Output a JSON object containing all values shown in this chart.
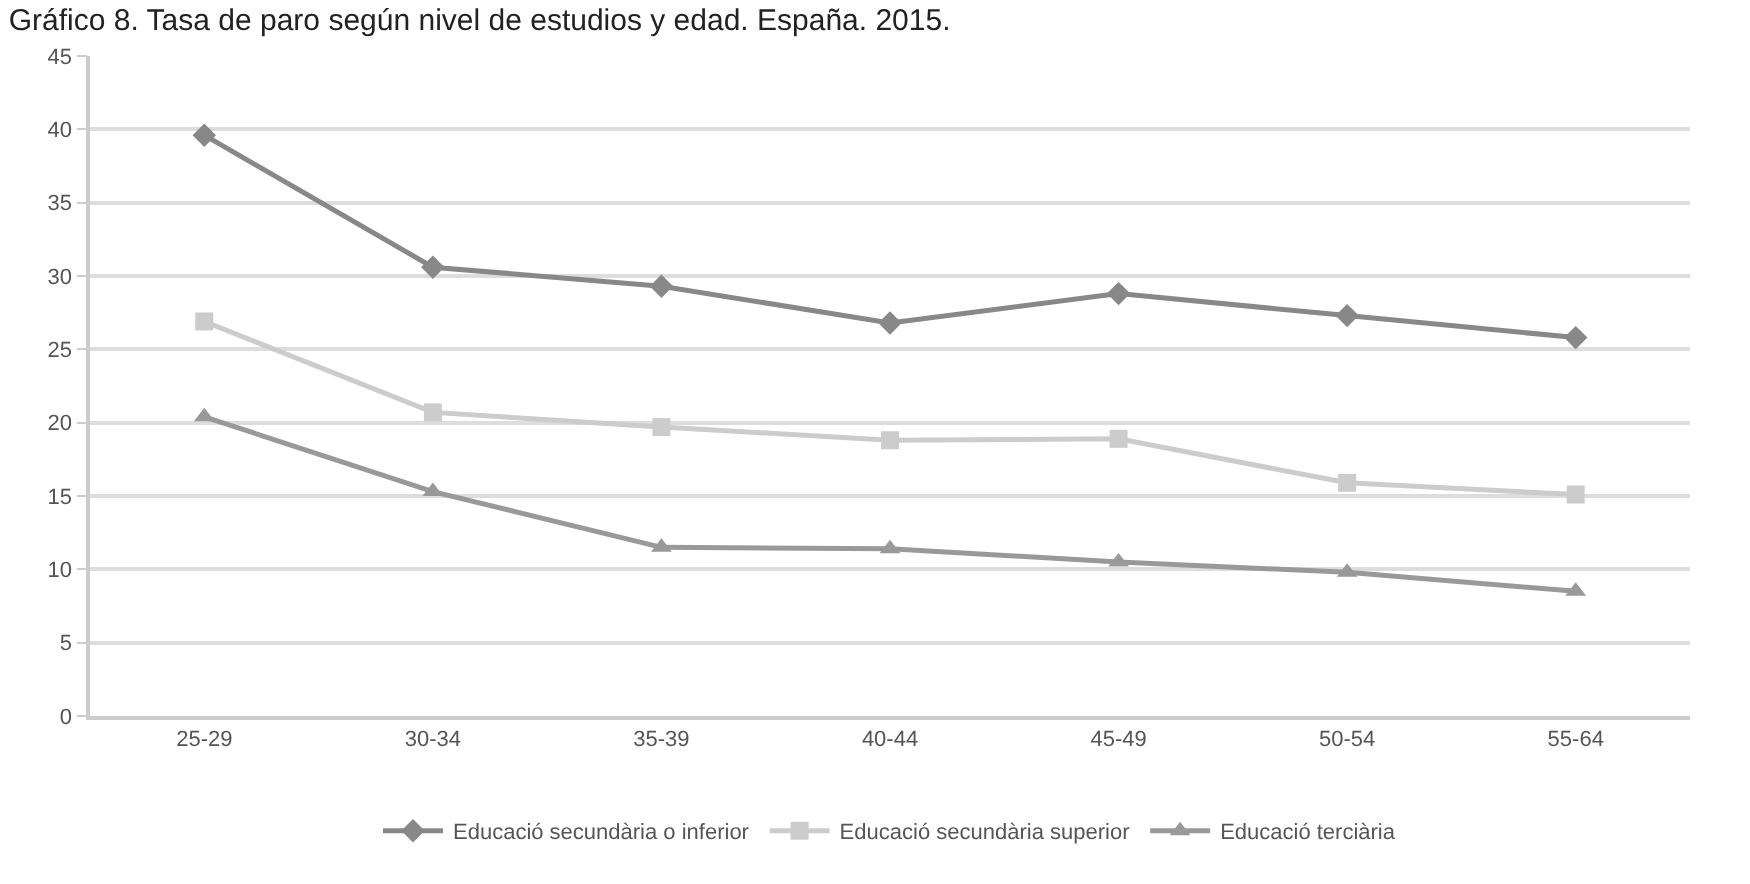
{
  "chart_data": {
    "type": "line",
    "title": "Gráfico 8. Tasa de paro según nivel de estudios y edad. España. 2015.",
    "categories": [
      "25-29",
      "30-34",
      "35-39",
      "40-44",
      "45-49",
      "50-54",
      "55-64"
    ],
    "series": [
      {
        "name": "Educació secundària o inferior",
        "color": "#888888",
        "marker": "diamond",
        "values": [
          39.6,
          30.6,
          29.3,
          26.8,
          28.8,
          27.3,
          25.8
        ]
      },
      {
        "name": "Educació secundària superior",
        "color": "#cccccc",
        "marker": "square",
        "values": [
          26.9,
          20.7,
          19.7,
          18.8,
          18.9,
          15.9,
          15.1
        ]
      },
      {
        "name": "Educació terciària",
        "color": "#999999",
        "marker": "triangle",
        "values": [
          20.4,
          15.3,
          11.5,
          11.4,
          10.5,
          9.8,
          8.5
        ]
      }
    ],
    "ylim": [
      0,
      45
    ],
    "yticks": [
      0,
      5,
      10,
      15,
      20,
      25,
      30,
      35,
      40,
      45
    ],
    "grid": "y",
    "legend": "bottom",
    "line_style": "solid"
  }
}
